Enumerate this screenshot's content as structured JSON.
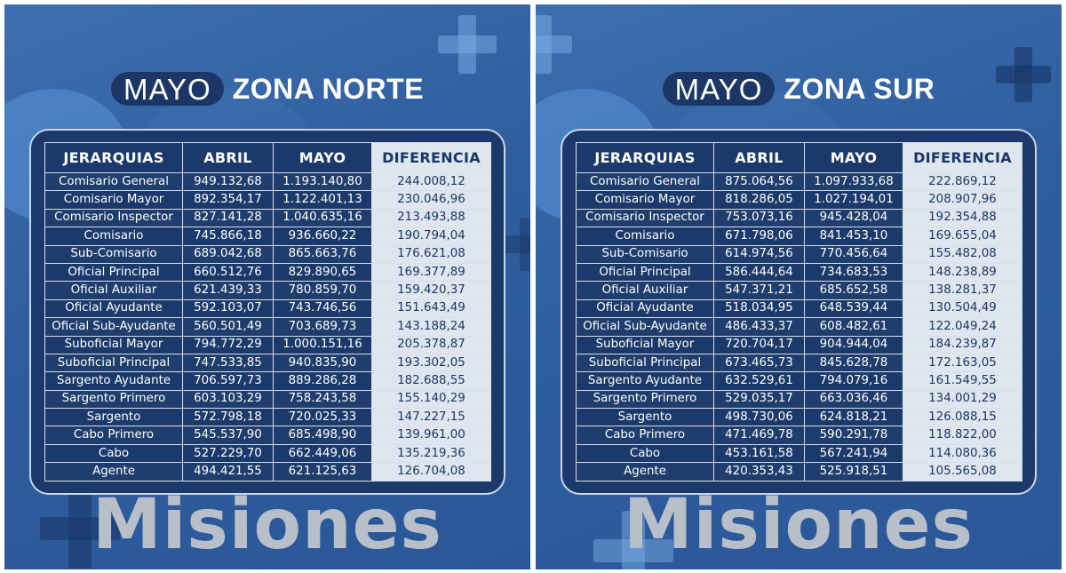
{
  "colors": {
    "background": "#2f5e9f",
    "pill": "#1c3766",
    "table_bg": "#1b3a6b",
    "diff_column_bg": "#dfe6ef",
    "diff_text": "#1c3766",
    "watermark": "#b8bfc9"
  },
  "columns": {
    "rank": "JERARQUIAS",
    "april": "ABRIL",
    "may": "MAYO",
    "diff": "DIFERENCIA"
  },
  "panels": [
    {
      "month": "MAYO",
      "zone": "ZONA NORTE",
      "footer": "Misiones",
      "rows": [
        {
          "rank": "Comisario General",
          "april": "949.132,68",
          "may": "1.193.140,80",
          "diff": "244.008,12"
        },
        {
          "rank": "Comisario Mayor",
          "april": "892.354,17",
          "may": "1.122.401,13",
          "diff": "230.046,96"
        },
        {
          "rank": "Comisario Inspector",
          "april": "827.141,28",
          "may": "1.040.635,16",
          "diff": "213.493,88"
        },
        {
          "rank": "Comisario",
          "april": "745.866,18",
          "may": "936.660,22",
          "diff": "190.794,04"
        },
        {
          "rank": "Sub-Comisario",
          "april": "689.042,68",
          "may": "865.663,76",
          "diff": "176.621,08"
        },
        {
          "rank": "Oficial Principal",
          "april": "660.512,76",
          "may": "829.890,65",
          "diff": "169.377,89"
        },
        {
          "rank": "Oficial Auxiliar",
          "april": "621.439,33",
          "may": "780.859,70",
          "diff": "159.420,37"
        },
        {
          "rank": "Oficial Ayudante",
          "april": "592.103,07",
          "may": "743.746,56",
          "diff": "151.643,49"
        },
        {
          "rank": "Oficial Sub-Ayudante",
          "april": "560.501,49",
          "may": "703.689,73",
          "diff": "143.188,24"
        },
        {
          "rank": "Suboficial Mayor",
          "april": "794.772,29",
          "may": "1.000.151,16",
          "diff": "205.378,87"
        },
        {
          "rank": "Suboficial Principal",
          "april": "747.533,85",
          "may": "940.835,90",
          "diff": "193.302,05"
        },
        {
          "rank": "Sargento Ayudante",
          "april": "706.597,73",
          "may": "889.286,28",
          "diff": "182.688,55"
        },
        {
          "rank": "Sargento Primero",
          "april": "603.103,29",
          "may": "758.243,58",
          "diff": "155.140,29"
        },
        {
          "rank": "Sargento",
          "april": "572.798,18",
          "may": "720.025,33",
          "diff": "147.227,15"
        },
        {
          "rank": "Cabo Primero",
          "april": "545.537,90",
          "may": "685.498,90",
          "diff": "139.961,00"
        },
        {
          "rank": "Cabo",
          "april": "527.229,70",
          "may": "662.449,06",
          "diff": "135.219,36"
        },
        {
          "rank": "Agente",
          "april": "494.421,55",
          "may": "621.125,63",
          "diff": "126.704,08"
        }
      ]
    },
    {
      "month": "MAYO",
      "zone": "ZONA SUR",
      "footer": "Misiones",
      "rows": [
        {
          "rank": "Comisario General",
          "april": "875.064,56",
          "may": "1.097.933,68",
          "diff": "222.869,12"
        },
        {
          "rank": "Comisario Mayor",
          "april": "818.286,05",
          "may": "1.027.194,01",
          "diff": "208.907,96"
        },
        {
          "rank": "Comisario Inspector",
          "april": "753.073,16",
          "may": "945.428,04",
          "diff": "192.354,88"
        },
        {
          "rank": "Comisario",
          "april": "671.798,06",
          "may": "841.453,10",
          "diff": "169.655,04"
        },
        {
          "rank": "Sub-Comisario",
          "april": "614.974,56",
          "may": "770.456,64",
          "diff": "155.482,08"
        },
        {
          "rank": "Oficial Principal",
          "april": "586.444,64",
          "may": "734.683,53",
          "diff": "148.238,89"
        },
        {
          "rank": "Oficial Auxiliar",
          "april": "547.371,21",
          "may": "685.652,58",
          "diff": "138.281,37"
        },
        {
          "rank": "Oficial Ayudante",
          "april": "518.034,95",
          "may": "648.539,44",
          "diff": "130.504,49"
        },
        {
          "rank": "Oficial Sub-Ayudante",
          "april": "486.433,37",
          "may": "608.482,61",
          "diff": "122.049,24"
        },
        {
          "rank": "Suboficial Mayor",
          "april": "720.704,17",
          "may": "904.944,04",
          "diff": "184.239,87"
        },
        {
          "rank": "Suboficial Principal",
          "april": "673.465,73",
          "may": "845.628,78",
          "diff": "172.163,05"
        },
        {
          "rank": "Sargento Ayudante",
          "april": "632.529,61",
          "may": "794.079,16",
          "diff": "161.549,55"
        },
        {
          "rank": "Sargento Primero",
          "april": "529.035,17",
          "may": "663.036,46",
          "diff": "134.001,29"
        },
        {
          "rank": "Sargento",
          "april": "498.730,06",
          "may": "624.818,21",
          "diff": "126.088,15"
        },
        {
          "rank": "Cabo Primero",
          "april": "471.469,78",
          "may": "590.291,78",
          "diff": "118.822,00"
        },
        {
          "rank": "Cabo",
          "april": "453.161,58",
          "may": "567.241,94",
          "diff": "114.080,36"
        },
        {
          "rank": "Agente",
          "april": "420.353,43",
          "may": "525.918,51",
          "diff": "105.565,08"
        }
      ]
    }
  ]
}
